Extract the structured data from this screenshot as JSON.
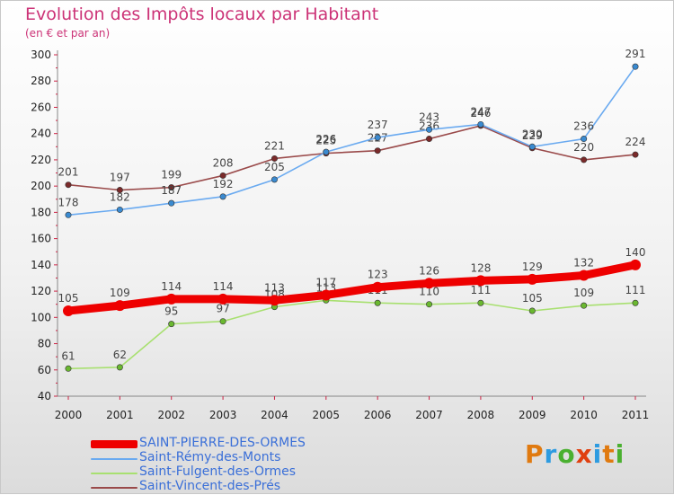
{
  "title": "Evolution des Impôts locaux par Habitant",
  "subtitle": "(en € et par an)",
  "logo": {
    "text": "Proxiti",
    "letter_colors": [
      "#e07a10",
      "#2d9be0",
      "#4ab030",
      "#e04010",
      "#2d9be0",
      "#e07a10",
      "#4ab030"
    ]
  },
  "chart_data": {
    "type": "line",
    "x": [
      "2000",
      "2001",
      "2002",
      "2003",
      "2004",
      "2005",
      "2006",
      "2007",
      "2008",
      "2009",
      "2010",
      "2011"
    ],
    "ylim": [
      40,
      300
    ],
    "yticks": [
      40,
      60,
      80,
      100,
      120,
      140,
      160,
      180,
      200,
      220,
      240,
      260,
      280,
      300
    ],
    "grid": false,
    "legend_position": "bottom-left",
    "series": [
      {
        "name": "Saint-Vincent-des-Prés",
        "color": "#7a2a2a",
        "line_color": "#9a4a4a",
        "values": [
          201,
          197,
          199,
          208,
          221,
          225,
          227,
          236,
          246,
          229,
          220,
          224
        ],
        "labels": [
          "201",
          "197",
          "199",
          "208",
          "221",
          "225",
          "227",
          "236",
          "246",
          "229",
          "220",
          "224"
        ]
      },
      {
        "name": "Saint-Rémy-des-Monts",
        "color": "#3a8ad0",
        "line_color": "#6aaaf0",
        "values": [
          178,
          182,
          187,
          192,
          205,
          226,
          237,
          243,
          247,
          230,
          236,
          291
        ],
        "labels": [
          "178",
          "182",
          "187",
          "192",
          "205",
          "226",
          "237",
          "243",
          "247",
          "230",
          "236",
          "291"
        ]
      },
      {
        "name": "Saint-Fulgent-des-Ormes",
        "color": "#6ab830",
        "line_color": "#a8e070",
        "values": [
          61,
          62,
          95,
          97,
          108,
          113,
          111,
          110,
          111,
          105,
          109,
          111
        ],
        "labels": [
          "61",
          "62",
          "95",
          "97",
          "108",
          "113",
          "111",
          "110",
          "111",
          "105",
          "109",
          "111"
        ]
      },
      {
        "name": "SAINT-PIERRE-DES-ORMES",
        "color": "#ee0000",
        "line_color": "#ee0000",
        "values": [
          105,
          109,
          114,
          114,
          113,
          117,
          123,
          126,
          128,
          129,
          132,
          140
        ],
        "labels": [
          "105",
          "109",
          "114",
          "114",
          "113",
          "117",
          "123",
          "126",
          "128",
          "129",
          "132",
          "140"
        ]
      }
    ],
    "legend_order": [
      "SAINT-PIERRE-DES-ORMES",
      "Saint-Rémy-des-Monts",
      "Saint-Fulgent-des-Ormes",
      "Saint-Vincent-des-Prés"
    ]
  }
}
